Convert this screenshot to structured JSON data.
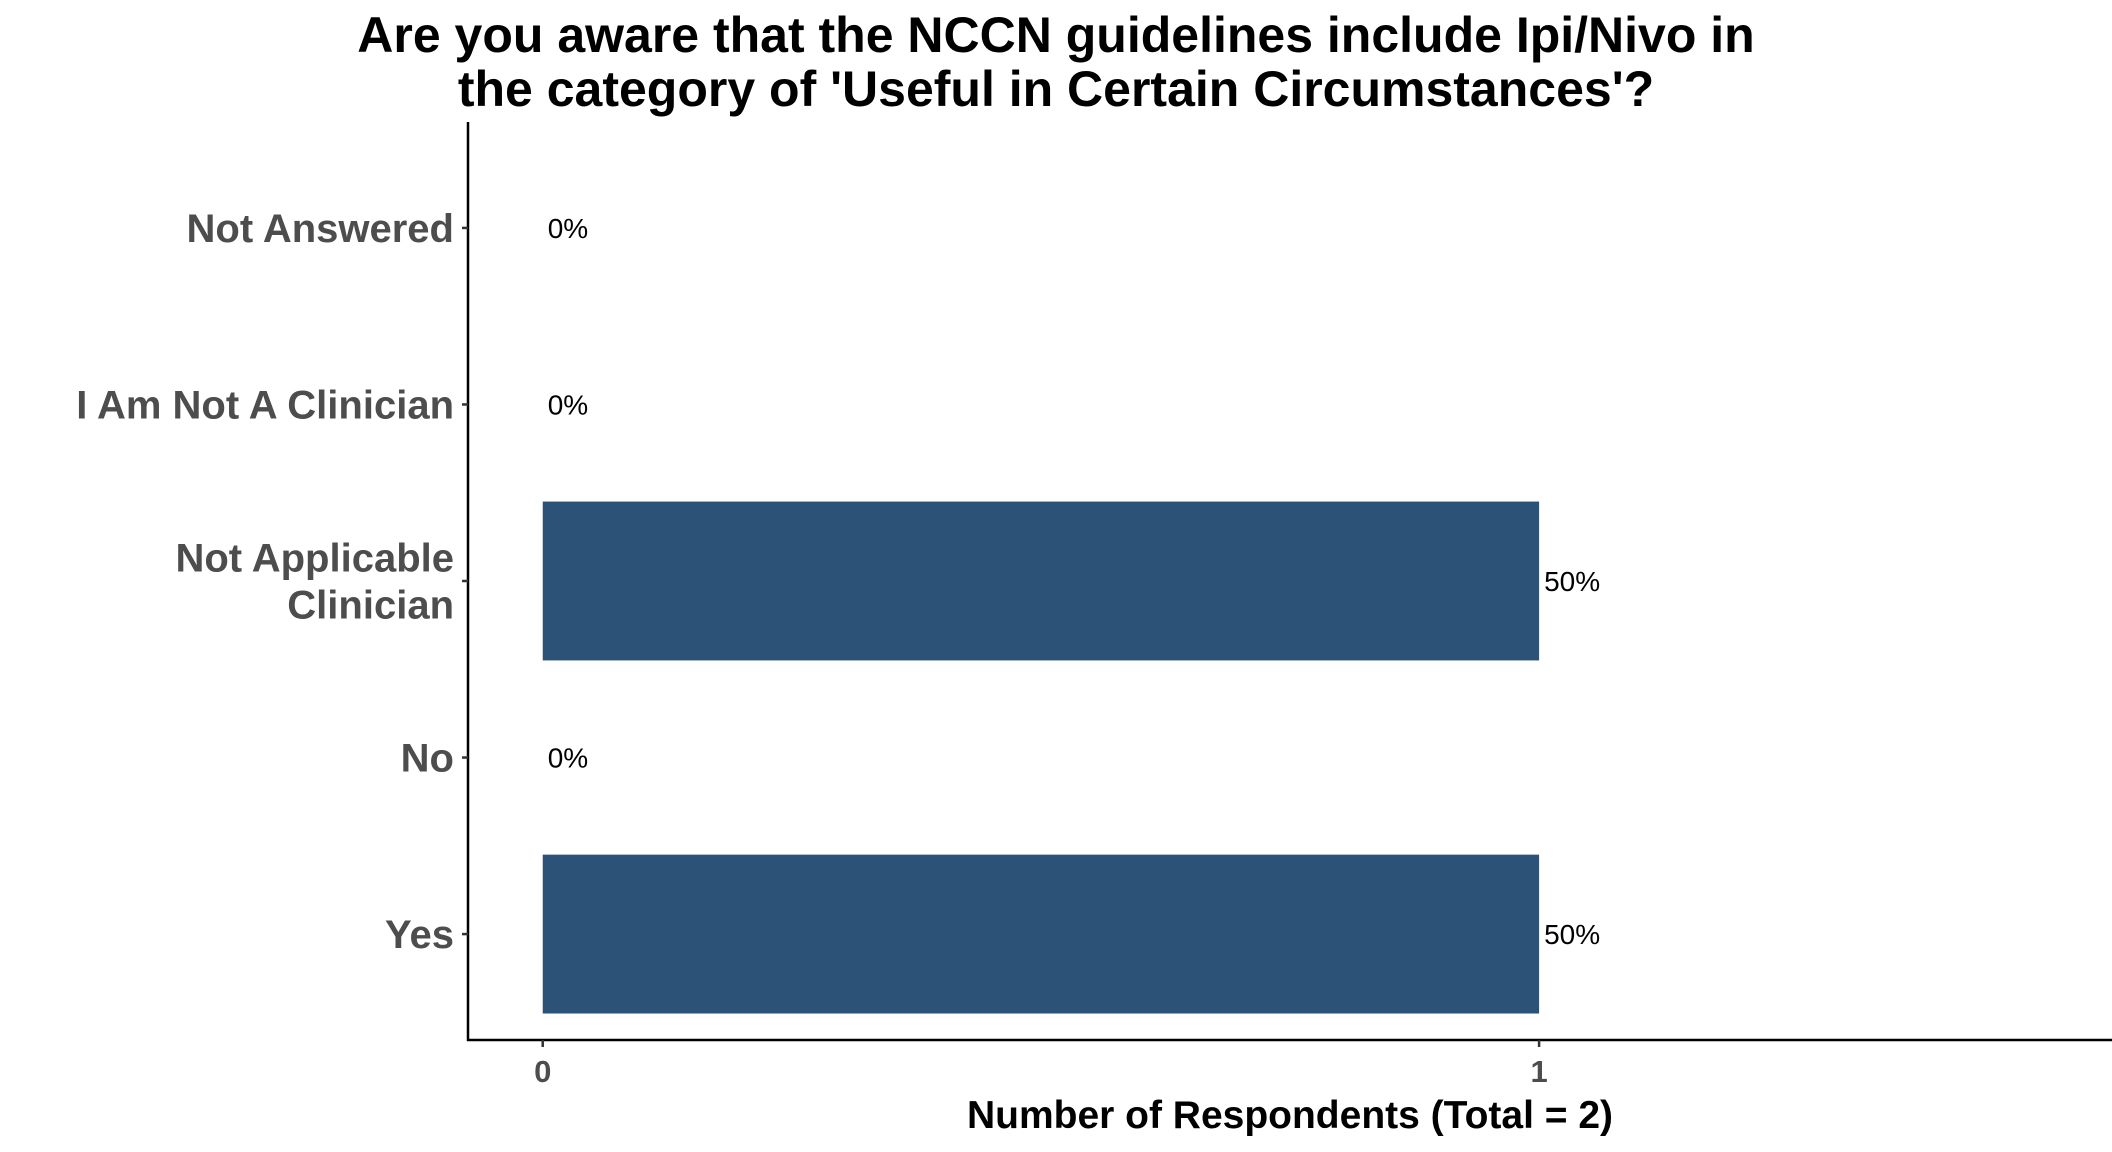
{
  "chart_data": {
    "type": "bar",
    "orientation": "horizontal",
    "title": "Are you aware that the NCCN guidelines include Ipi/Nivo in the category of 'Useful in Certain Circumstances'?",
    "title_lines": [
      "Are you aware that the NCCN guidelines include Ipi/Nivo in",
      "the category of 'Useful in Certain Circumstances'?"
    ],
    "xlabel": "Number of Respondents (Total = 2)",
    "ylabel": "",
    "xlim": [
      -0.075,
      1.575
    ],
    "xticks": [
      0,
      1
    ],
    "grid": false,
    "legend": "none",
    "bar_color": "#2c5277",
    "categories": [
      {
        "name": "Yes",
        "lines": [
          "Yes"
        ],
        "value": 1,
        "label": "50%"
      },
      {
        "name": "No",
        "lines": [
          "No"
        ],
        "value": 0,
        "label": "0%"
      },
      {
        "name": "Not Applicable Clinician",
        "lines": [
          "Not Applicable",
          "Clinician"
        ],
        "value": 1,
        "label": "50%"
      },
      {
        "name": "I Am Not A Clinician",
        "lines": [
          "I Am Not A Clinician"
        ],
        "value": 0,
        "label": "0%"
      },
      {
        "name": "Not Answered",
        "lines": [
          "Not Answered"
        ],
        "value": 0,
        "label": "0%"
      }
    ]
  }
}
